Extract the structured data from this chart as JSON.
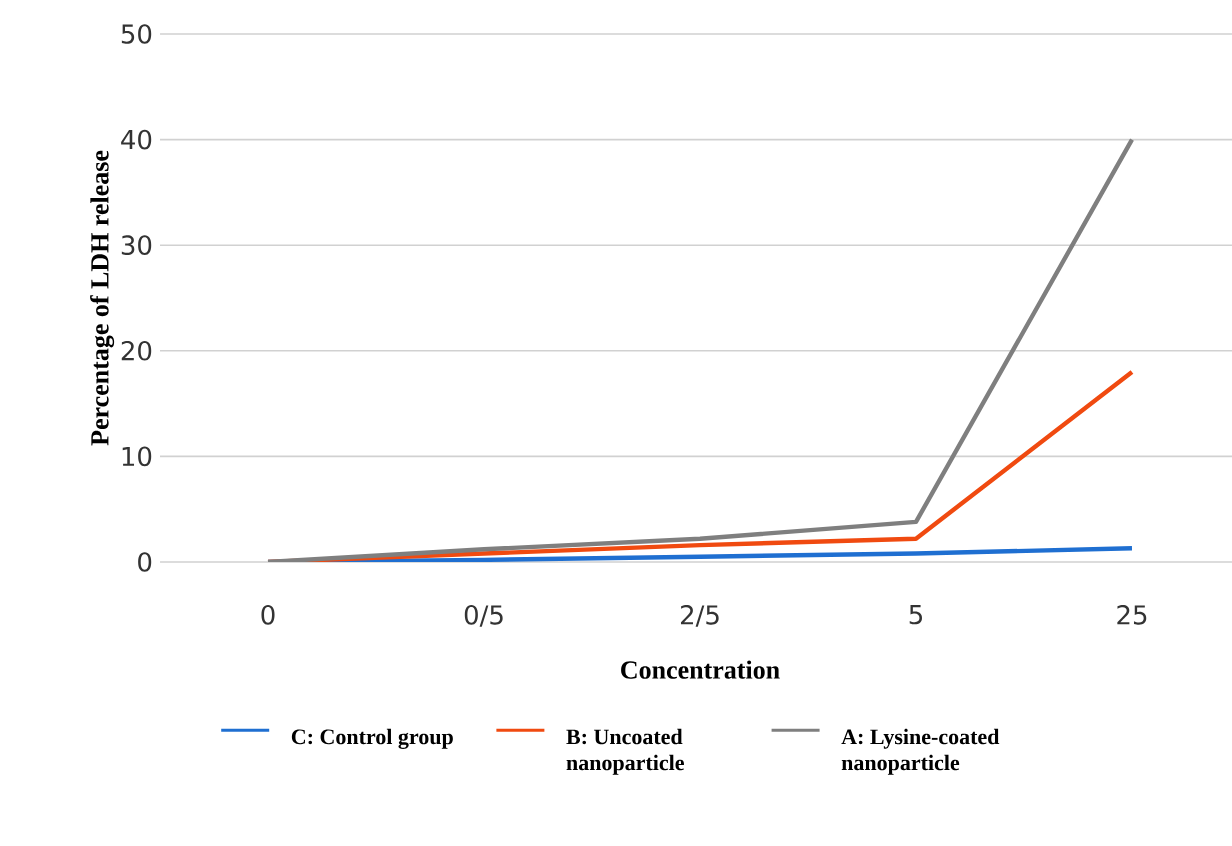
{
  "chart_data": {
    "type": "line",
    "xlabel": "Concentration",
    "ylabel": "Percentage of LDH release",
    "categories": [
      "0",
      "0/5",
      "2/5",
      "5",
      "25"
    ],
    "series": [
      {
        "name": "C: Control group",
        "color": "#1f6fd1",
        "values": [
          0,
          0.2,
          0.5,
          0.8,
          1.3
        ]
      },
      {
        "name": "B: Uncoated nanoparticle",
        "color": "#f04a10",
        "values": [
          0,
          0.8,
          1.6,
          2.2,
          18
        ]
      },
      {
        "name": "A: Lysine-coated nanoparticle",
        "color": "#7f7f7f",
        "values": [
          0,
          1.2,
          2.2,
          3.8,
          40
        ]
      }
    ],
    "ylim": [
      0,
      50
    ],
    "yticks": [
      0,
      10,
      20,
      30,
      40,
      50
    ],
    "grid": "y",
    "legend": "bottom",
    "marker": "none",
    "line_style": "solid"
  }
}
